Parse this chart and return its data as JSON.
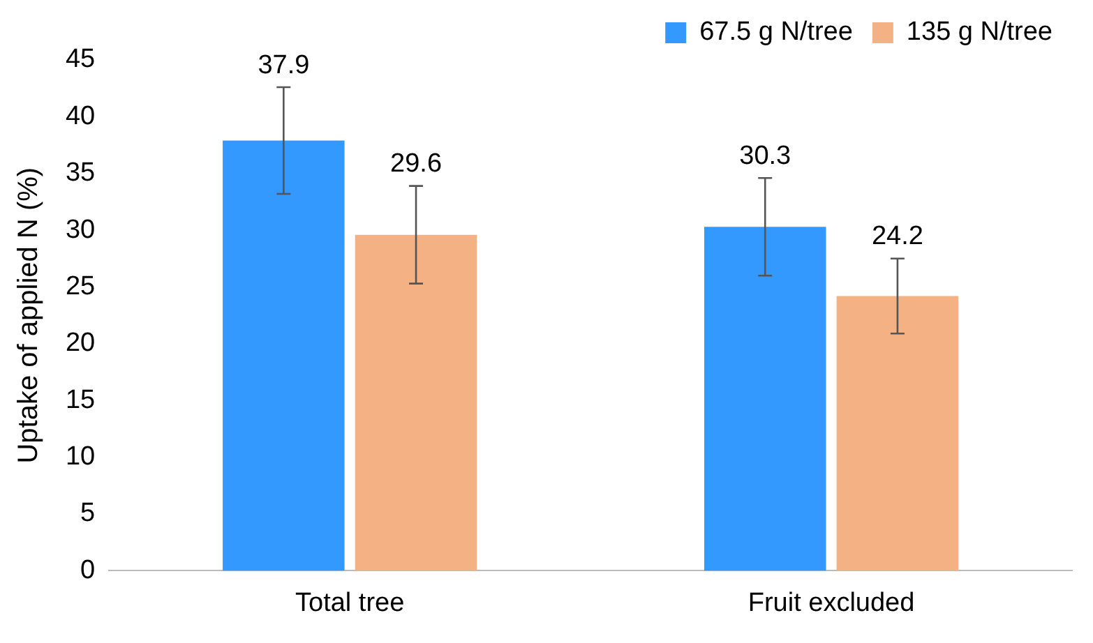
{
  "chart_data": {
    "type": "bar",
    "ylabel": "Uptake of applied N (%)",
    "categories": [
      "Total tree",
      "Fruit excluded"
    ],
    "series": [
      {
        "name": "67.5 g N/tree",
        "color": "#3399ff",
        "values": [
          37.9,
          30.3
        ],
        "errors": [
          4.7,
          4.3
        ]
      },
      {
        "name": "135 g N/tree",
        "color": "#f4b183",
        "values": [
          29.6,
          24.2
        ],
        "errors": [
          4.3,
          3.3
        ]
      }
    ],
    "ylim": [
      0,
      45
    ],
    "yticks": [
      0,
      5,
      10,
      15,
      20,
      25,
      30,
      35,
      40,
      45
    ],
    "grid": false,
    "legend": "top right",
    "data_labels": true
  }
}
